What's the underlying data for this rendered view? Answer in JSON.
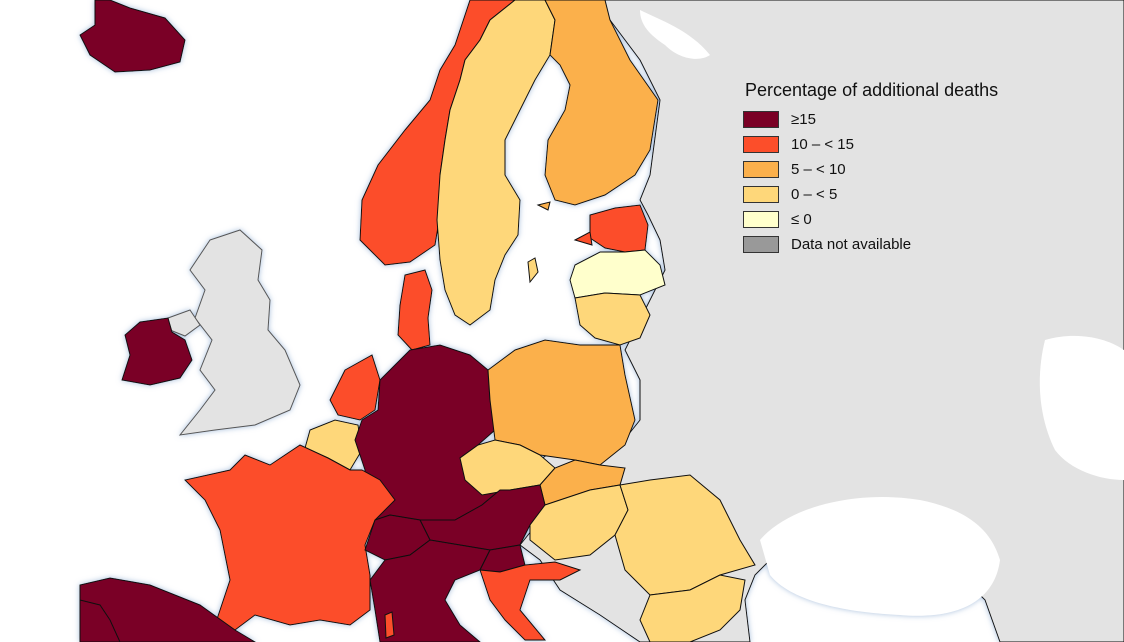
{
  "legend": {
    "title": "Percentage of additional deaths",
    "items": [
      {
        "label": "≥15",
        "color": "#7a0025"
      },
      {
        "label": "10 – < 15",
        "color": "#fc4e2a"
      },
      {
        "label": "5 – < 10",
        "color": "#fbb04c"
      },
      {
        "label": "0 – < 5",
        "color": "#fed77a"
      },
      {
        "label": "≤ 0",
        "color": "#ffffcc"
      },
      {
        "label": "Data not available",
        "color": "#999999"
      }
    ]
  },
  "colors": {
    "sea": "#ffffff",
    "non_member_land": "#e3e3e3",
    "border": "#111111"
  },
  "regions": [
    {
      "name": "Iceland",
      "category": "≥15"
    },
    {
      "name": "Ireland",
      "category": "≥15"
    },
    {
      "name": "Norway",
      "category": "10 – < 15"
    },
    {
      "name": "Sweden",
      "category": "0 – < 5"
    },
    {
      "name": "Finland",
      "category": "5 – < 10"
    },
    {
      "name": "Estonia",
      "category": "10 – < 15"
    },
    {
      "name": "Latvia",
      "category": "≤ 0"
    },
    {
      "name": "Lithuania",
      "category": "0 – < 5"
    },
    {
      "name": "Denmark",
      "category": "10 – < 15"
    },
    {
      "name": "Netherlands",
      "category": "10 – < 15"
    },
    {
      "name": "Belgium",
      "category": "0 – < 5"
    },
    {
      "name": "Germany",
      "category": "≥15"
    },
    {
      "name": "Poland",
      "category": "5 – < 10"
    },
    {
      "name": "Czechia",
      "category": "0 – < 5"
    },
    {
      "name": "Slovakia",
      "category": "5 – < 10"
    },
    {
      "name": "Austria",
      "category": "≥15"
    },
    {
      "name": "Hungary",
      "category": "0 – < 5"
    },
    {
      "name": "Romania",
      "category": "0 – < 5"
    },
    {
      "name": "Bulgaria",
      "category": "0 – < 5"
    },
    {
      "name": "France",
      "category": "10 – < 15"
    },
    {
      "name": "Switzerland",
      "category": "≥15"
    },
    {
      "name": "Italy",
      "category": "≥15"
    },
    {
      "name": "Slovenia",
      "category": "≥15"
    },
    {
      "name": "Croatia",
      "category": "10 – < 15"
    },
    {
      "name": "Spain",
      "category": "≥15"
    },
    {
      "name": "Portugal",
      "category": "≥15"
    },
    {
      "name": "Luxembourg",
      "category": "≥15"
    },
    {
      "name": "United Kingdom",
      "category": "Data not available"
    },
    {
      "name": "Northern Ireland",
      "category": "Data not available"
    }
  ]
}
